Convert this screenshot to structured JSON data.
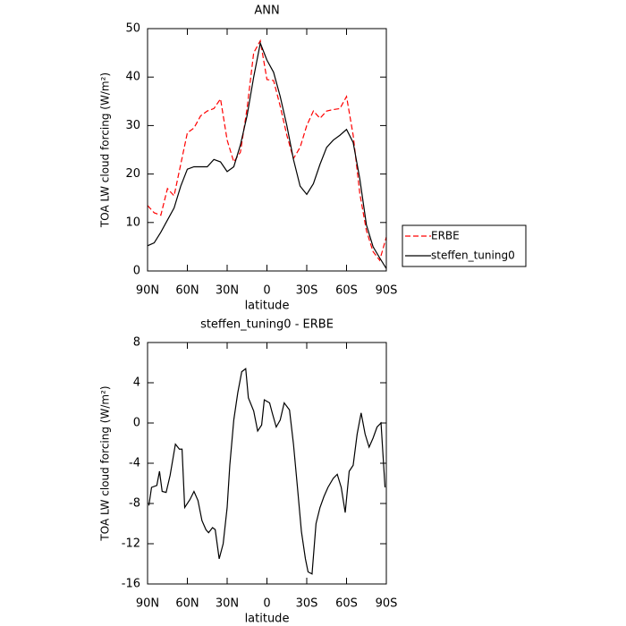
{
  "chart_data": [
    {
      "type": "line",
      "title": "ANN",
      "x_label": "latitude",
      "y_label": "TOA LW cloud forcing (W/m²)",
      "xlim": [
        90,
        -90
      ],
      "xticks": [
        {
          "value": 90,
          "label": "90N"
        },
        {
          "value": 60,
          "label": "60N"
        },
        {
          "value": 30,
          "label": "30N"
        },
        0,
        {
          "value": -30,
          "label": "30S"
        },
        {
          "value": -60,
          "label": "60S"
        },
        {
          "value": -90,
          "label": "90S"
        }
      ],
      "ylim": [
        0,
        50
      ],
      "yticks": [
        0,
        10,
        20,
        30,
        40,
        50
      ],
      "legend": "right",
      "x": [
        90,
        85,
        80,
        75,
        70,
        65,
        60,
        55,
        50,
        45,
        40,
        35,
        30,
        25,
        20,
        15,
        10,
        5,
        0,
        -5,
        -10,
        -15,
        -20,
        -25,
        -30,
        -35,
        -40,
        -45,
        -50,
        -55,
        -60,
        -65,
        -70,
        -75,
        -80,
        -85,
        -90
      ],
      "series": [
        {
          "name": "ERBE",
          "color": "#ff0000",
          "dash": "dashed",
          "values": [
            13.5,
            12,
            11.5,
            17,
            15.5,
            22,
            28.5,
            29.5,
            32,
            33,
            33.5,
            35.5,
            27,
            22.5,
            24.5,
            33.5,
            45,
            47.5,
            39.5,
            39.3,
            34,
            28,
            23.2,
            25.5,
            30,
            33,
            31.5,
            33,
            33.3,
            33.5,
            36,
            28,
            16,
            8.3,
            4,
            2.2,
            7
          ]
        },
        {
          "name": "steffen_tuning0",
          "color": "#000000",
          "dash": "solid",
          "values": [
            5.2,
            5.8,
            8,
            10.5,
            13,
            17.5,
            21,
            21.5,
            21.5,
            21.5,
            23,
            22.5,
            20.5,
            21.5,
            26,
            32,
            40,
            47,
            43.5,
            41,
            36,
            30,
            23,
            17.5,
            15.8,
            18,
            22,
            25.5,
            27,
            28,
            29.2,
            26.5,
            19,
            9.5,
            5,
            2.7,
            0.5
          ]
        }
      ]
    },
    {
      "type": "line",
      "title": "steffen_tuning0 - ERBE",
      "x_label": "latitude",
      "y_label": "TOA LW cloud forcing (W/m²)",
      "xlim": [
        90,
        -90
      ],
      "xticks": [
        {
          "value": 90,
          "label": "90N"
        },
        {
          "value": 60,
          "label": "60N"
        },
        {
          "value": 30,
          "label": "30N"
        },
        0,
        {
          "value": -30,
          "label": "30S"
        },
        {
          "value": -60,
          "label": "60S"
        },
        {
          "value": -90,
          "label": "90S"
        }
      ],
      "ylim": [
        -16,
        8
      ],
      "yticks": [
        -16,
        -12,
        -8,
        -4,
        0,
        4,
        8
      ],
      "x": [
        89,
        87,
        83,
        81,
        79,
        76,
        73,
        69,
        66,
        64,
        62,
        58,
        55,
        52,
        49,
        46,
        44,
        41,
        39,
        36,
        33,
        30,
        28,
        25,
        22,
        19,
        16,
        14,
        10,
        7,
        4,
        2,
        -2,
        -4,
        -7,
        -10,
        -13,
        -17,
        -20,
        -23,
        -26,
        -29,
        -31,
        -34,
        -37,
        -40,
        -43,
        -46,
        -50,
        -53,
        -56,
        -59,
        -62,
        -65,
        -68,
        -71,
        -74,
        -77,
        -80,
        -83,
        -86,
        -89
      ],
      "series": [
        {
          "color": "#000000",
          "dash": "solid",
          "values": [
            -8.2,
            -6.4,
            -6.2,
            -4.8,
            -6.8,
            -6.9,
            -5.2,
            -2.1,
            -2.6,
            -2.6,
            -8.4,
            -7.6,
            -6.8,
            -7.7,
            -9.7,
            -10.6,
            -10.9,
            -10.4,
            -10.6,
            -13.5,
            -12,
            -8.4,
            -4.2,
            0.3,
            3,
            5.1,
            5.4,
            2.5,
            1.2,
            -0.8,
            -0.2,
            2.3,
            2,
            1,
            -0.4,
            0.3,
            2,
            1.3,
            -2.1,
            -6.4,
            -10.8,
            -13.5,
            -14.8,
            -15,
            -10,
            -8.4,
            -7.3,
            -6.4,
            -5.5,
            -5.1,
            -6.4,
            -8.9,
            -4.8,
            -4.2,
            -1.1,
            1,
            -1.1,
            -2.4,
            -1.5,
            -0.4,
            0,
            -6.4
          ]
        }
      ]
    }
  ]
}
